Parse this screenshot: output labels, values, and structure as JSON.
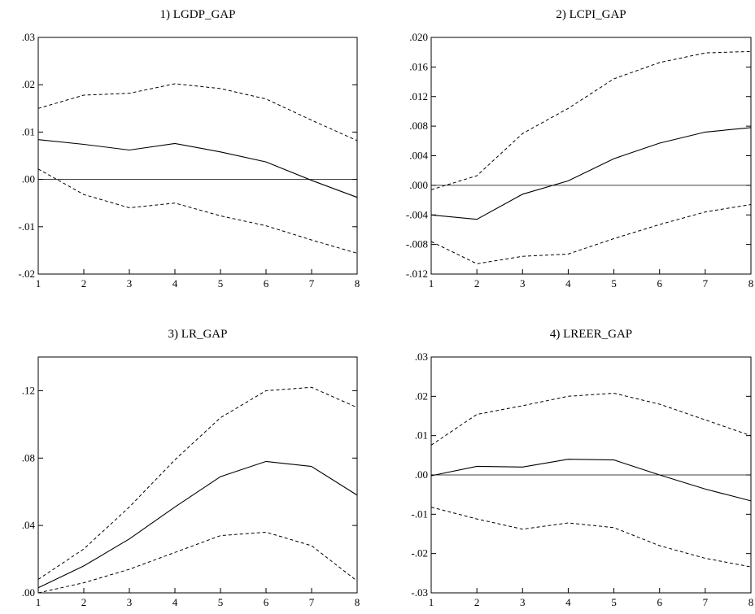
{
  "chart_data": [
    {
      "type": "line",
      "title": "1) LGDP_GAP",
      "x": [
        1,
        2,
        3,
        4,
        5,
        6,
        7,
        8
      ],
      "ylim": [
        -0.02,
        0.03
      ],
      "yticks": [
        ".03",
        ".02",
        ".01",
        ".00",
        "-.01",
        "-.02"
      ],
      "ytick_values": [
        0.03,
        0.02,
        0.01,
        0.0,
        -0.01,
        -0.02
      ],
      "xticks": [
        "1",
        "2",
        "3",
        "4",
        "5",
        "6",
        "7",
        "8"
      ],
      "zero_line": true,
      "series": [
        {
          "role": "response",
          "style": "solid",
          "values": [
            0.0084,
            0.0074,
            0.0062,
            0.0076,
            0.0058,
            0.0037,
            -0.0002,
            -0.0038
          ]
        },
        {
          "role": "upper",
          "style": "dashed",
          "values": [
            0.015,
            0.0178,
            0.0182,
            0.0202,
            0.0192,
            0.017,
            0.0125,
            0.0082
          ]
        },
        {
          "role": "lower",
          "style": "dashed",
          "values": [
            0.0022,
            -0.0032,
            -0.006,
            -0.005,
            -0.0077,
            -0.0098,
            -0.0128,
            -0.0156
          ]
        }
      ]
    },
    {
      "type": "line",
      "title": "2) LCPI_GAP",
      "x": [
        1,
        2,
        3,
        4,
        5,
        6,
        7,
        8
      ],
      "ylim": [
        -0.012,
        0.02
      ],
      "yticks": [
        ".020",
        ".016",
        ".012",
        ".008",
        ".004",
        ".000",
        "-.004",
        "-.008",
        "-.012"
      ],
      "ytick_values": [
        0.02,
        0.016,
        0.012,
        0.008,
        0.004,
        0.0,
        -0.004,
        -0.008,
        -0.012
      ],
      "xticks": [
        "1",
        "2",
        "3",
        "4",
        "5",
        "6",
        "7",
        "8"
      ],
      "zero_line": true,
      "series": [
        {
          "role": "response",
          "style": "solid",
          "values": [
            -0.004,
            -0.0046,
            -0.0012,
            0.0006,
            0.0036,
            0.0057,
            0.0072,
            0.0078
          ]
        },
        {
          "role": "upper",
          "style": "dashed",
          "values": [
            -0.0006,
            0.0013,
            0.007,
            0.0104,
            0.0144,
            0.0166,
            0.0179,
            0.0181
          ]
        },
        {
          "role": "lower",
          "style": "dashed",
          "values": [
            -0.0076,
            -0.0106,
            -0.0096,
            -0.0093,
            -0.0072,
            -0.0053,
            -0.0036,
            -0.0026
          ]
        }
      ]
    },
    {
      "type": "line",
      "title": "3) LR_GAP",
      "x": [
        1,
        2,
        3,
        4,
        5,
        6,
        7,
        8
      ],
      "ylim": [
        0.0,
        0.14
      ],
      "yticks": [
        ".12",
        ".08",
        ".04",
        ".00"
      ],
      "ytick_values": [
        0.12,
        0.08,
        0.04,
        0.0
      ],
      "xticks": [
        "1",
        "2",
        "3",
        "4",
        "5",
        "6",
        "7",
        "8"
      ],
      "zero_line": false,
      "series": [
        {
          "role": "response",
          "style": "solid",
          "values": [
            0.003,
            0.016,
            0.032,
            0.051,
            0.069,
            0.078,
            0.075,
            0.058
          ]
        },
        {
          "role": "upper",
          "style": "dashed",
          "values": [
            0.008,
            0.026,
            0.051,
            0.079,
            0.104,
            0.12,
            0.122,
            0.11
          ]
        },
        {
          "role": "lower",
          "style": "dashed",
          "values": [
            0.0,
            0.006,
            0.014,
            0.024,
            0.034,
            0.036,
            0.028,
            0.007
          ]
        }
      ]
    },
    {
      "type": "line",
      "title": "4) LREER_GAP",
      "x": [
        1,
        2,
        3,
        4,
        5,
        6,
        7,
        8
      ],
      "ylim": [
        -0.03,
        0.03
      ],
      "yticks": [
        ".03",
        ".02",
        ".01",
        ".00",
        "-.01",
        "-.02",
        "-.03"
      ],
      "ytick_values": [
        0.03,
        0.02,
        0.01,
        0.0,
        -0.01,
        -0.02,
        -0.03
      ],
      "xticks": [
        "1",
        "2",
        "3",
        "4",
        "5",
        "6",
        "7",
        "8"
      ],
      "zero_line": true,
      "series": [
        {
          "role": "response",
          "style": "solid",
          "values": [
            -0.0002,
            0.0022,
            0.002,
            0.004,
            0.0038,
            0.0,
            -0.0036,
            -0.0066
          ]
        },
        {
          "role": "upper",
          "style": "dashed",
          "values": [
            0.0076,
            0.0154,
            0.0176,
            0.02,
            0.0208,
            0.018,
            0.014,
            0.01
          ]
        },
        {
          "role": "lower",
          "style": "dashed",
          "values": [
            -0.0082,
            -0.0112,
            -0.0138,
            -0.0122,
            -0.0134,
            -0.018,
            -0.0212,
            -0.0234
          ]
        }
      ]
    }
  ]
}
